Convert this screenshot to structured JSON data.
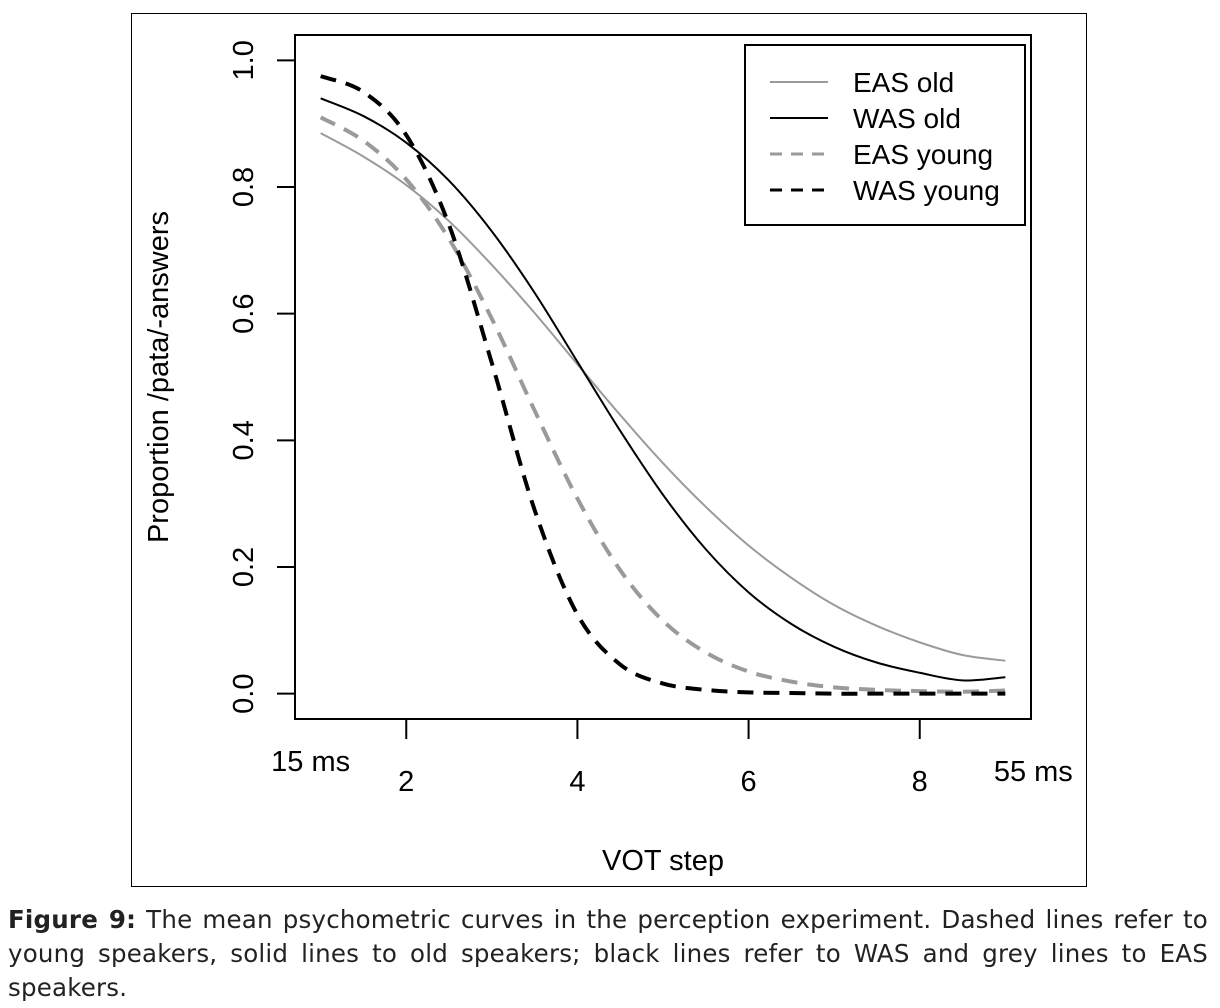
{
  "chart_data": {
    "type": "line",
    "xlabel": "VOT step",
    "ylabel": "Proportion /pata/-answers",
    "xlim": [
      0.7,
      9.3
    ],
    "ylim": [
      -0.04,
      1.04
    ],
    "x_ticks": [
      2,
      4,
      6,
      8
    ],
    "x_tick_labels": [
      "2",
      "4",
      "6",
      "8"
    ],
    "y_ticks": [
      0.0,
      0.2,
      0.4,
      0.6,
      0.8,
      1.0
    ],
    "y_tick_labels": [
      "0.0",
      "0.2",
      "0.4",
      "0.6",
      "0.8",
      "1.0"
    ],
    "x_end_annotations": [
      {
        "x": 1,
        "text": "15 ms"
      },
      {
        "x": 9,
        "text": "55 ms"
      }
    ],
    "legend_position": "top-right",
    "grid": false,
    "x": [
      1.0,
      1.5,
      2.0,
      2.5,
      3.0,
      3.5,
      4.0,
      4.5,
      5.0,
      5.5,
      6.0,
      6.5,
      7.0,
      7.5,
      8.0,
      8.5,
      9.0
    ],
    "series": [
      {
        "name": "EAS old",
        "color": "#9a9a9a",
        "dash": "solid",
        "width": 2,
        "values": [
          0.885,
          0.848,
          0.803,
          0.746,
          0.677,
          0.601,
          0.52,
          0.44,
          0.364,
          0.295,
          0.234,
          0.183,
          0.14,
          0.107,
          0.081,
          0.061,
          0.052
        ]
      },
      {
        "name": "WAS old",
        "color": "#000000",
        "dash": "solid",
        "width": 2,
        "values": [
          0.94,
          0.912,
          0.87,
          0.81,
          0.73,
          0.633,
          0.524,
          0.415,
          0.314,
          0.228,
          0.16,
          0.11,
          0.074,
          0.049,
          0.033,
          0.021,
          0.026
        ]
      },
      {
        "name": "EAS young",
        "color": "#9a9a9a",
        "dash": "dashed",
        "width": 4,
        "values": [
          0.91,
          0.873,
          0.812,
          0.718,
          0.592,
          0.447,
          0.308,
          0.195,
          0.115,
          0.065,
          0.035,
          0.019,
          0.01,
          0.006,
          0.004,
          0.003,
          0.005
        ]
      },
      {
        "name": "WAS young",
        "color": "#000000",
        "dash": "dashed",
        "width": 4,
        "values": [
          0.975,
          0.95,
          0.882,
          0.74,
          0.522,
          0.29,
          0.125,
          0.046,
          0.016,
          0.006,
          0.002,
          0.001,
          0.0,
          0.0,
          0.0,
          0.0,
          0.0
        ]
      }
    ]
  },
  "caption": {
    "label": "Figure 9:",
    "text": "The mean psychometric curves in the perception experiment. Dashed lines refer to young speakers, solid lines to old speakers; black lines refer to WAS and grey lines to EAS speakers."
  }
}
